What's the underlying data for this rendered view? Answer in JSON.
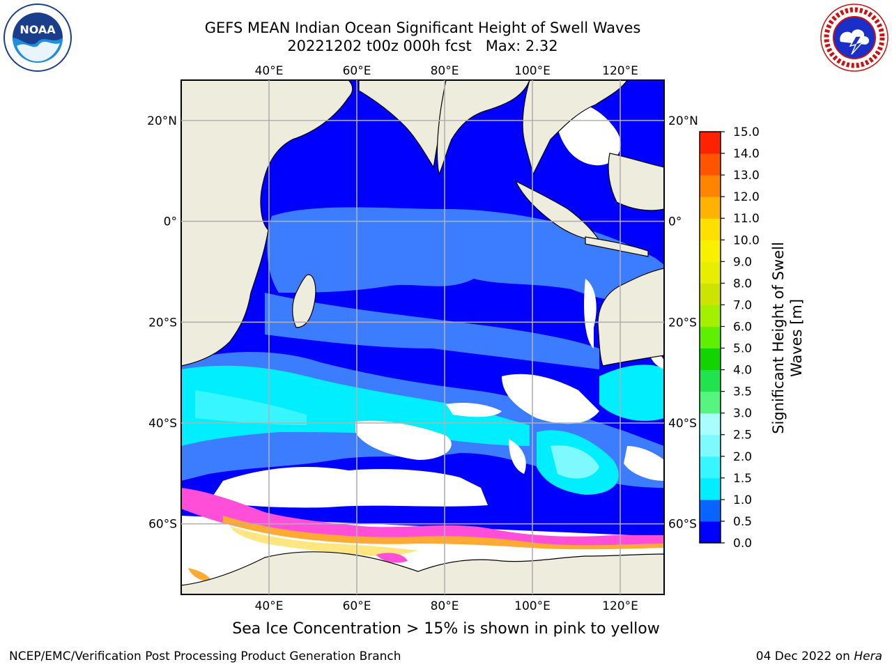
{
  "header": {
    "title_line1": "GEFS MEAN Indian Ocean Significant Height of Swell Waves",
    "title_line2": "20221202 t00z 000h fcst   Max: 2.32"
  },
  "logos": {
    "left": "noaa-logo",
    "right": "national-weather-service-logo"
  },
  "map": {
    "projection": "equirectangular",
    "lon_range": [
      20,
      130
    ],
    "lat_range": [
      -74,
      28
    ],
    "top_lon_labels": [
      "40°E",
      "60°E",
      "80°E",
      "100°E",
      "120°E"
    ],
    "bottom_lon_labels": [
      "40°E",
      "60°E",
      "80°E",
      "100°E",
      "120°E"
    ],
    "left_lat_labels": [
      "20°N",
      "0°",
      "20°S",
      "40°S",
      "60°S"
    ],
    "right_lat_labels": [
      "20°N",
      "0°",
      "20°S",
      "40°S",
      "60°S"
    ],
    "colors": {
      "land": "#eeecdc",
      "ocean_base": "#0000ff",
      "ice_mask": "#ffffff",
      "grid": "#b0b0b0",
      "coast": "#000000"
    }
  },
  "colorbar": {
    "label_line1": "Significant Height of Swell",
    "label_line2": "Waves [m]",
    "tick_labels": [
      "0.0",
      "0.5",
      "1.0",
      "1.5",
      "2.0",
      "2.5",
      "3.0",
      "3.5",
      "4.0",
      "5.0",
      "6.0",
      "7.0",
      "8.0",
      "9.0",
      "10.0",
      "11.0",
      "12.0",
      "13.0",
      "14.0",
      "15.0"
    ],
    "colors": [
      "#0000ff",
      "#0a64ff",
      "#00eeff",
      "#38f6ff",
      "#7efaff",
      "#aafdfd",
      "#55f57f",
      "#21e34f",
      "#11d400",
      "#5ef000",
      "#a3f000",
      "#cde300",
      "#e7ee00",
      "#f9f000",
      "#fee000",
      "#ffb300",
      "#ff8400",
      "#ff5500",
      "#ff2200",
      "#ff0000"
    ]
  },
  "ice_note": "Sea Ice Concentration > 15% is shown in pink to yellow",
  "footer": {
    "left": "NCEP/EMC/Verification Post Processing Product Generation Branch",
    "date": "04 Dec 2022 on ",
    "system": "Hera"
  }
}
